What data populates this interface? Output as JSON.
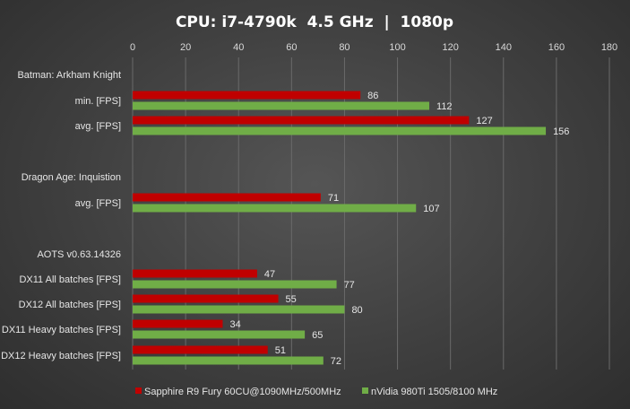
{
  "chart_data": {
    "type": "bar",
    "orientation": "horizontal",
    "title": "CPU: i7-4790k  4.5 GHz  |  1080p",
    "xlim": [
      0,
      180
    ],
    "xticks": [
      0,
      20,
      40,
      60,
      80,
      100,
      120,
      140,
      160,
      180
    ],
    "grid": true,
    "legend_position": "bottom",
    "categories": [
      "Batman: Arkham Knight",
      "min. [FPS]",
      "avg. [FPS]",
      "",
      "Dragon Age: Inquistion",
      "avg. [FPS]",
      "",
      "AOTS v0.63.14326",
      "DX11 All batches [FPS]",
      "DX12 All batches [FPS]",
      "DX11 Heavy batches [FPS]",
      "DX12 Heavy batches [FPS]"
    ],
    "series": [
      {
        "name": "Sapphire R9 Fury 60CU@1090MHz/500MHz",
        "color": "#c00000",
        "values": [
          null,
          86,
          127,
          null,
          null,
          71,
          null,
          null,
          47,
          55,
          34,
          51
        ]
      },
      {
        "name": "nVidia 980Ti 1505/8100 MHz",
        "color": "#70ad47",
        "values": [
          null,
          112,
          156,
          null,
          null,
          107,
          null,
          null,
          77,
          80,
          65,
          72
        ]
      }
    ]
  }
}
